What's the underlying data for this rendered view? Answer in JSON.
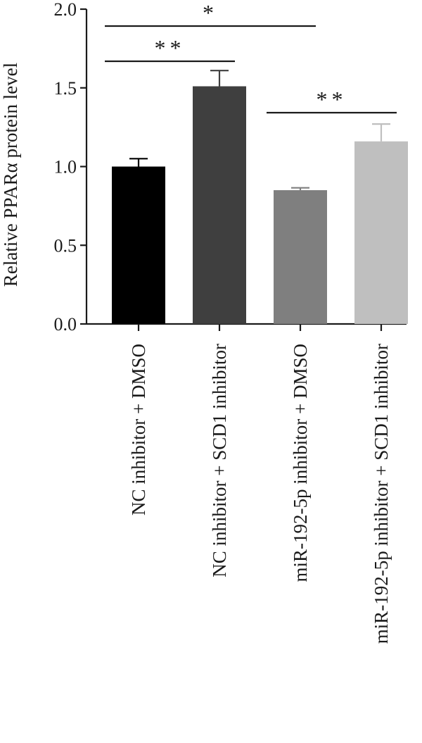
{
  "chart_data": {
    "type": "bar",
    "title": "",
    "xlabel": "",
    "ylabel": "Relative PPARα protein level",
    "ylim": [
      0,
      2.0
    ],
    "yticks": [
      0.0,
      0.5,
      1.0,
      1.5,
      2.0
    ],
    "ytick_labels": [
      "0.0",
      "0.5",
      "1.0",
      "1.5",
      "2.0"
    ],
    "grid": false,
    "legend": "none",
    "categories": [
      "NC inhibitor + DMSO",
      "NC inhibitor + SCD1 inhibitor",
      "miR-192-5p inhibitor + DMSO",
      "miR-192-5p inhibitor + SCD1 inhibitor"
    ],
    "values": [
      1.0,
      1.51,
      0.85,
      1.16
    ],
    "errors": [
      0.05,
      0.1,
      0.015,
      0.11
    ],
    "colors": [
      "#000000",
      "#3f3f3f",
      "#7f7f7f",
      "#bfbfbf"
    ],
    "significance": [
      {
        "from": 0,
        "to": 2,
        "label": "*"
      },
      {
        "from": 0,
        "to": 1,
        "label": "**"
      },
      {
        "from": 2,
        "to": 3,
        "label": "**"
      }
    ]
  }
}
